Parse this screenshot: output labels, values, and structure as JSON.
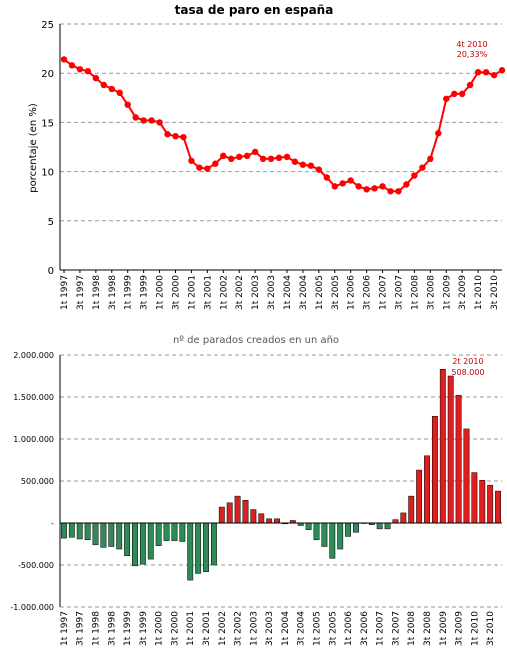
{
  "chart_data": [
    {
      "type": "line",
      "title": "tasa de paro en españa",
      "ylabel": "porcentaje (en %)",
      "xlabel": "",
      "ylim": [
        0,
        25
      ],
      "yticks": [
        "0",
        "5",
        "10",
        "15",
        "20",
        "25"
      ],
      "x_tick_labels": [
        "1t 1997",
        "3t 1997",
        "1t 1998",
        "3t 1998",
        "1t 1999",
        "3t 1999",
        "1t 2000",
        "3t 2000",
        "1t 2001",
        "3t 2001",
        "1t 2002",
        "3t 2002",
        "1t 2003",
        "3t 2003",
        "1t 2004",
        "3t 2004",
        "1t 2005",
        "3t 2005",
        "1t 2006",
        "3t 2006",
        "1t 2007",
        "3t 2007",
        "1t 2008",
        "3t 2008",
        "1t 2009",
        "3t 2009",
        "1t 2010",
        "3t 2010"
      ],
      "grid": "horizontal dashed",
      "line_color": "#ff0000",
      "annotation": {
        "line1": "4t 2010",
        "line2": "20,33%"
      },
      "values": [
        21.4,
        20.8,
        20.4,
        20.2,
        19.5,
        18.8,
        18.4,
        18.0,
        16.8,
        15.5,
        15.2,
        15.2,
        15.0,
        13.8,
        13.6,
        13.5,
        11.1,
        10.4,
        10.3,
        10.8,
        11.6,
        11.3,
        11.5,
        11.6,
        12.0,
        11.3,
        11.3,
        11.4,
        11.5,
        11.0,
        10.7,
        10.6,
        10.2,
        9.4,
        8.5,
        8.8,
        9.1,
        8.5,
        8.2,
        8.3,
        8.5,
        8.0,
        8.0,
        8.7,
        9.6,
        10.4,
        11.3,
        13.9,
        17.4,
        17.9,
        17.9,
        18.8,
        20.1,
        20.1,
        19.8,
        20.3
      ]
    },
    {
      "type": "bar",
      "title": "nº de parados creados en un año",
      "xlabel": "",
      "ylabel": "",
      "ylim": [
        -1000000,
        2000000
      ],
      "yticks": [
        "-1.000.000",
        "-500.000",
        "-",
        "500.000",
        "1.000.000",
        "1.500.000",
        "2.000.000"
      ],
      "x_tick_labels": [
        "1t 1997",
        "3t 1997",
        "1t 1998",
        "3t 1998",
        "1t 1999",
        "3t 1999",
        "1t 2000",
        "3t 2000",
        "1t 2001",
        "3t 2001",
        "1t 2002",
        "3t 2002",
        "1t 2003",
        "3t 2003",
        "1t 2004",
        "3t 2004",
        "1t 2005",
        "3t 2005",
        "1t 2006",
        "3t 2006",
        "1t 2007",
        "3t 2007",
        "1t 2008",
        "3t 2008",
        "1t 2009",
        "3t 2009",
        "1t 2010",
        "3t 2010"
      ],
      "grid": "horizontal dashed",
      "positive_color": "#dd1f1f",
      "negative_color": "#2e8b57",
      "annotation": {
        "line1": "2t 2010",
        "line2": "508.000"
      },
      "values": [
        -180000,
        -170000,
        -190000,
        -200000,
        -260000,
        -290000,
        -280000,
        -310000,
        -390000,
        -510000,
        -490000,
        -430000,
        -270000,
        -210000,
        -210000,
        -220000,
        -680000,
        -600000,
        -580000,
        -500000,
        190000,
        240000,
        320000,
        270000,
        160000,
        110000,
        50000,
        50000,
        -10000,
        30000,
        -30000,
        -80000,
        -200000,
        -280000,
        -420000,
        -310000,
        -160000,
        -110000,
        0,
        -20000,
        -70000,
        -70000,
        40000,
        120000,
        320000,
        630000,
        800000,
        1270000,
        1830000,
        1750000,
        1520000,
        1120000,
        600000,
        508000,
        450000,
        380000
      ]
    }
  ]
}
